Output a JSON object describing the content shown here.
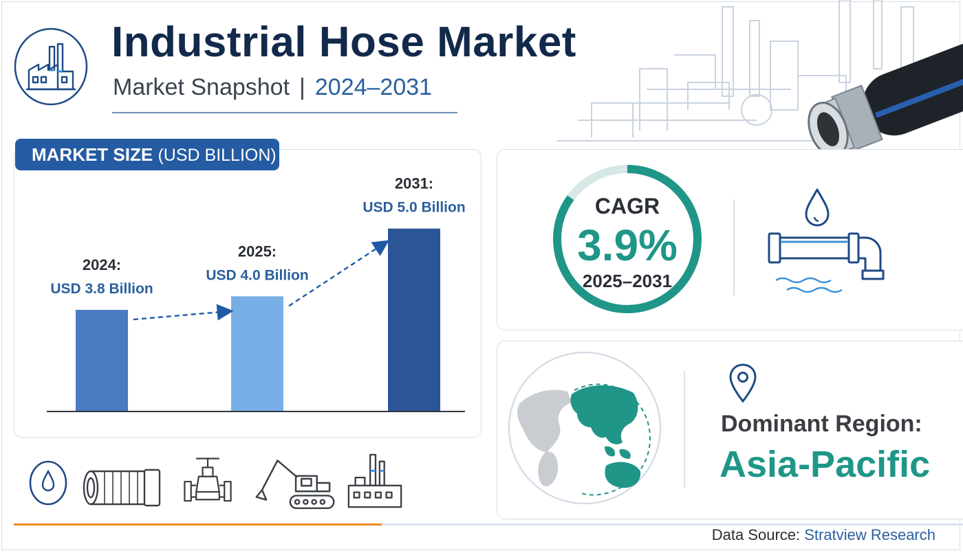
{
  "header": {
    "title": "Industrial Hose Market",
    "subtitle_left": "Market Snapshot",
    "subtitle_sep": "|",
    "subtitle_years": "2024–2031"
  },
  "market_size": {
    "badge_main": "MARKET SIZE",
    "badge_unit": "(USD BILLION)"
  },
  "chart_data": {
    "type": "bar",
    "categories": [
      "2024",
      "2025",
      "2031"
    ],
    "values": [
      3.8,
      4.0,
      5.0
    ],
    "labels_year": [
      "2024:",
      "2025:",
      "2031:"
    ],
    "labels_value": [
      "USD 3.8 Billion",
      "USD 4.0 Billion",
      "USD 5.0 Billion"
    ],
    "title": "",
    "xlabel": "",
    "ylabel": "",
    "ylim": [
      0,
      5.2
    ],
    "grid": false,
    "legend": "none",
    "colors": [
      "#4a7bbf",
      "#78aee6",
      "#2b5597"
    ]
  },
  "cagr": {
    "label": "CAGR",
    "value": "3.9%",
    "range": "2025–2031",
    "ring_fraction": 0.85,
    "color": "#1f9688"
  },
  "region": {
    "label": "Dominant Region:",
    "value": "Asia-Pacific",
    "color": "#1f9688"
  },
  "footer": {
    "source_label": "Data Source:",
    "source_name": "Stratview Research"
  },
  "icons": {
    "logo": "factory-icon",
    "cagr_side": "water-pipe-icon",
    "region_pin": "location-pin-icon",
    "bottom": [
      "water-drop-icon",
      "hose-icon",
      "valve-icon",
      "excavator-icon",
      "factory-icon"
    ]
  }
}
